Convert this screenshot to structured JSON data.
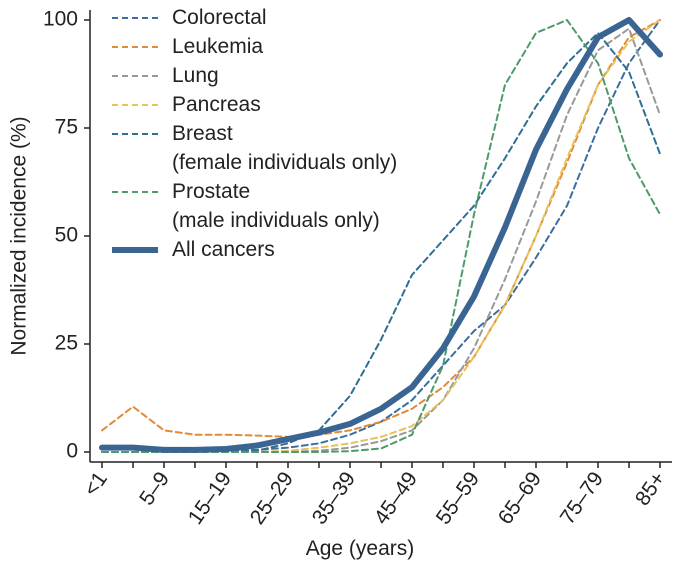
{
  "chart_data": {
    "type": "line",
    "xlabel": "Age (years)",
    "ylabel": "Normalized incidence (%)",
    "categories": [
      "<1",
      null,
      "5–9",
      null,
      "15–19",
      null,
      "25–29",
      null,
      "35–39",
      null,
      "45–49",
      null,
      "55–59",
      null,
      "65–69",
      null,
      "75–79",
      null,
      "85+"
    ],
    "ylim": [
      0,
      100
    ],
    "yticks": [
      0,
      25,
      50,
      75,
      100
    ],
    "grid": false,
    "legend": "top-left",
    "series": [
      {
        "name": "Colorectal",
        "color": "#3b6e9e",
        "dashed": true,
        "values": [
          0,
          0,
          0,
          0,
          0.2,
          0.5,
          1,
          2,
          4,
          7,
          12,
          20,
          28,
          34,
          45,
          57,
          75,
          90,
          100
        ]
      },
      {
        "name": "Leukemia",
        "color": "#e08a3c",
        "dashed": true,
        "values": [
          5,
          10.5,
          5,
          4,
          4,
          3.8,
          3.5,
          4,
          5,
          7,
          10,
          15,
          22,
          34,
          50,
          67,
          85,
          96,
          100
        ]
      },
      {
        "name": "Lung",
        "color": "#999999",
        "dashed": true,
        "values": [
          0,
          0,
          0,
          0,
          0,
          0,
          0,
          0.3,
          1,
          2.5,
          5,
          12,
          24,
          40,
          58,
          78,
          93,
          98,
          78
        ]
      },
      {
        "name": "Pancreas",
        "color": "#e8c25a",
        "dashed": true,
        "values": [
          0,
          0,
          0,
          0,
          0,
          0,
          0.3,
          1,
          2,
          3.5,
          6,
          12,
          22,
          34,
          50,
          68,
          85,
          95,
          100
        ]
      },
      {
        "name": "Breast\n(female individuals only)",
        "color": "#2f6f95",
        "dashed": true,
        "values": [
          0,
          0,
          0,
          0,
          0,
          0.3,
          2,
          5,
          13,
          26,
          41,
          49,
          57,
          68,
          80,
          90,
          97,
          88,
          69
        ]
      },
      {
        "name": "Prostate\n(male individuals only)",
        "color": "#4e9a6a",
        "dashed": true,
        "values": [
          0,
          0,
          0,
          0,
          0,
          0,
          0,
          0,
          0.2,
          0.8,
          4,
          20,
          55,
          85,
          97,
          100,
          90,
          68,
          55
        ]
      },
      {
        "name": "All cancers",
        "color": "#3a6592",
        "dashed": false,
        "values": [
          1,
          1,
          0.5,
          0.5,
          0.7,
          1.5,
          3,
          4.5,
          6.5,
          10,
          15,
          24,
          36,
          52,
          70,
          84,
          96,
          100,
          92
        ]
      }
    ]
  }
}
